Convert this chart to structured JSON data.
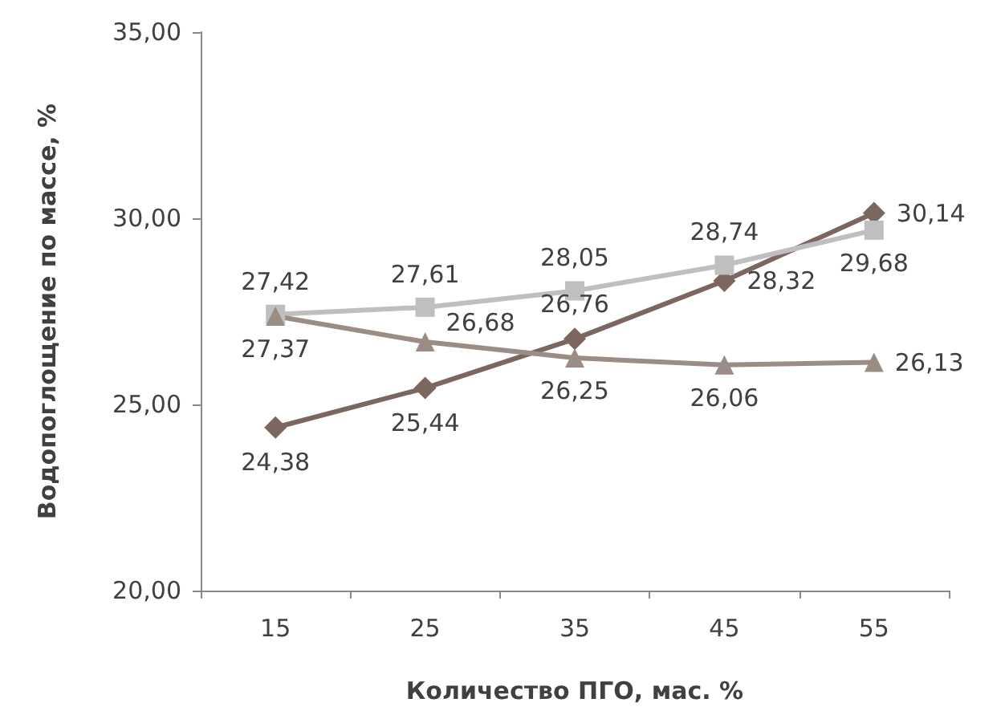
{
  "chart_data": {
    "type": "line",
    "xlabel": "Количество ПГО, мас. %",
    "ylabel": "Водопоглощение по массе, %",
    "categories": [
      "15",
      "25",
      "35",
      "45",
      "55"
    ],
    "ylim": [
      20,
      35
    ],
    "yticks": [
      {
        "value": 20,
        "label": "20,00"
      },
      {
        "value": 25,
        "label": "25,00"
      },
      {
        "value": 30,
        "label": "30,00"
      },
      {
        "value": 35,
        "label": "35,00"
      }
    ],
    "grid": false,
    "series": [
      {
        "color": "#7b6760",
        "marker": "diamond",
        "values": [
          24.38,
          25.44,
          26.76,
          28.32,
          30.14
        ],
        "value_labels": [
          "24,38",
          "25,44",
          "26,76",
          "28,32",
          "30,14"
        ]
      },
      {
        "color": "#bfbfbf",
        "marker": "square",
        "values": [
          27.42,
          27.61,
          28.05,
          28.74,
          29.68
        ],
        "value_labels": [
          "27,42",
          "27,61",
          "28,05",
          "28,74",
          "29,68"
        ]
      },
      {
        "color": "#9b8c86",
        "marker": "triangle",
        "values": [
          27.37,
          26.68,
          26.25,
          26.06,
          26.13
        ],
        "value_labels": [
          "27,37",
          "26,68",
          "26,25",
          "26,06",
          "26,13"
        ]
      }
    ]
  }
}
